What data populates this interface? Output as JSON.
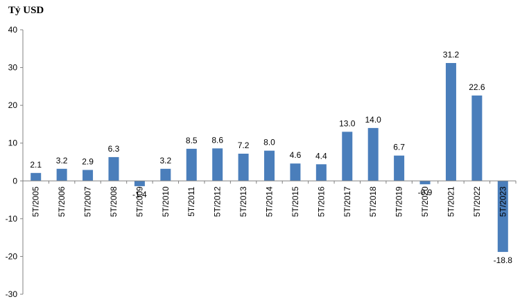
{
  "chart_data": {
    "type": "bar",
    "ylabel": "Tỷ USD",
    "categories": [
      "5T/2005",
      "5T/2006",
      "5T/2007",
      "5T/2008",
      "5T/2009",
      "5T/2010",
      "5T/2011",
      "5T/2012",
      "5T/2013",
      "5T/2014",
      "5T/2015",
      "5T/2016",
      "5T/2017",
      "5T/2018",
      "5T/2019",
      "5T/2020",
      "5T/2021",
      "5T/2022",
      "5T/2023"
    ],
    "values": [
      2.1,
      3.2,
      2.9,
      6.3,
      -1.4,
      3.2,
      8.5,
      8.6,
      7.2,
      8.0,
      4.6,
      4.4,
      13.0,
      14.0,
      6.7,
      -0.9,
      31.2,
      22.6,
      -18.8
    ],
    "data_labels": [
      "2.1",
      "3.2",
      "2.9",
      "6.3",
      "-1.4",
      "3.2",
      "8.5",
      "8.6",
      "7.2",
      "8.0",
      "4.6",
      "4.4",
      "13.0",
      "14.0",
      "6.7",
      "-0.9",
      "31.2",
      "22.6",
      "-18.8"
    ],
    "ylim": [
      -30,
      40
    ],
    "yticks": [
      -30,
      -20,
      -10,
      0,
      10,
      20,
      30,
      40
    ],
    "grid": false,
    "legend": "none",
    "bar_color": "#4a7ebb"
  }
}
